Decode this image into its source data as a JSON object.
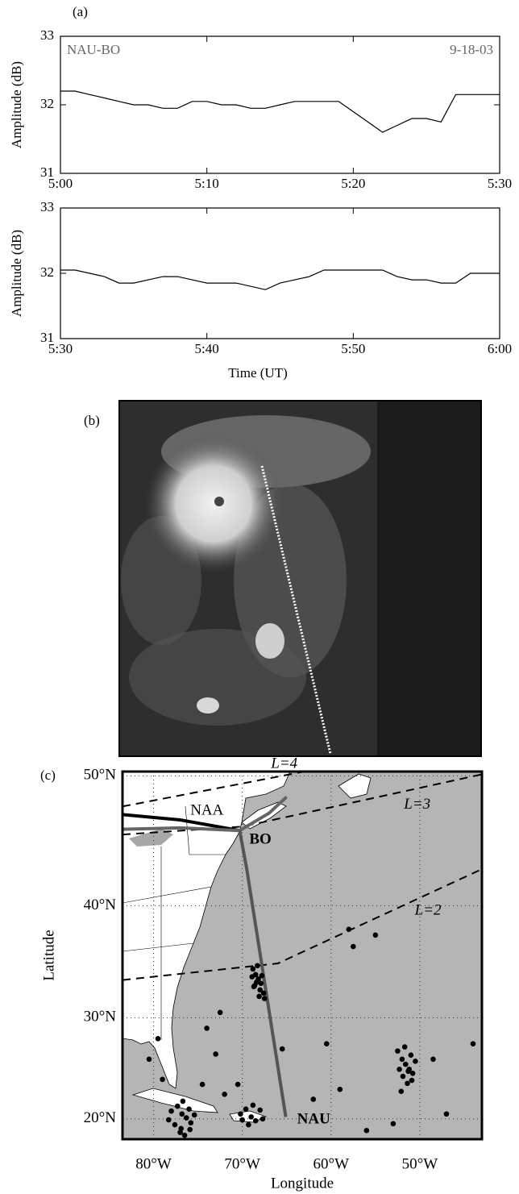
{
  "chart_data": [
    {
      "type": "line",
      "panel_label": "(a)",
      "ylabel": "Amplitude (dB)",
      "annotations": [
        "NAU-BO",
        "9-18-03"
      ],
      "color": "#000000",
      "x": [
        "5:00",
        "5:01",
        "5:02",
        "5:03",
        "5:04",
        "5:05",
        "5:06",
        "5:07",
        "5:08",
        "5:09",
        "5:10",
        "5:11",
        "5:12",
        "5:13",
        "5:14",
        "5:15",
        "5:16",
        "5:17",
        "5:18",
        "5:19",
        "5:20",
        "5:21",
        "5:22",
        "5:23",
        "5:24",
        "5:25",
        "5:26",
        "5:27",
        "5:28",
        "5:29",
        "5:30"
      ],
      "values": [
        32.2,
        32.2,
        32.15,
        32.1,
        32.05,
        32.0,
        32.0,
        31.95,
        31.95,
        32.05,
        32.05,
        32.0,
        32.0,
        31.95,
        31.95,
        32.0,
        32.05,
        32.05,
        32.05,
        32.05,
        31.9,
        31.75,
        31.6,
        31.7,
        31.8,
        31.8,
        31.75,
        32.15,
        32.15,
        32.15,
        32.15
      ],
      "xlim": [
        "5:00",
        "5:30"
      ],
      "xticks": [
        "5:00",
        "5:10",
        "5:20",
        "5:30"
      ],
      "ylim": [
        31,
        33
      ],
      "yticks": [
        31,
        32,
        33
      ]
    },
    {
      "type": "line",
      "ylabel": "Amplitude (dB)",
      "xlabel": "Time (UT)",
      "color": "#000000",
      "x": [
        "5:30",
        "5:31",
        "5:32",
        "5:33",
        "5:34",
        "5:35",
        "5:36",
        "5:37",
        "5:38",
        "5:39",
        "5:40",
        "5:41",
        "5:42",
        "5:43",
        "5:44",
        "5:45",
        "5:46",
        "5:47",
        "5:48",
        "5:49",
        "5:50",
        "5:51",
        "5:52",
        "5:53",
        "5:54",
        "5:55",
        "5:56",
        "5:57",
        "5:58",
        "5:59",
        "6:00"
      ],
      "values": [
        32.05,
        32.05,
        32.0,
        31.95,
        31.85,
        31.85,
        31.9,
        31.95,
        31.95,
        31.9,
        31.85,
        31.85,
        31.85,
        31.8,
        31.75,
        31.85,
        31.9,
        31.95,
        32.05,
        32.05,
        32.05,
        32.05,
        32.05,
        31.95,
        31.9,
        31.9,
        31.85,
        31.85,
        32.0,
        32.0,
        32.0
      ],
      "xlim": [
        "5:30",
        "6:00"
      ],
      "xticks": [
        "5:30",
        "5:40",
        "5:50",
        "6:00"
      ],
      "ylim": [
        31,
        33
      ],
      "yticks": [
        31,
        32,
        33
      ]
    },
    {
      "type": "map",
      "panel_label": "(c)",
      "xlabel": "Longitude",
      "ylabel": "Latitude",
      "projection": "mercator",
      "grid": true,
      "xlim": [
        -83.5,
        -43
      ],
      "ylim": [
        17.9,
        50.3
      ],
      "xticks": [
        {
          "value": -80,
          "label": "80°W"
        },
        {
          "value": -70,
          "label": "70°W"
        },
        {
          "value": -60,
          "label": "60°W"
        },
        {
          "value": -50,
          "label": "50°W"
        }
      ],
      "yticks": [
        {
          "value": 20,
          "label": "20°N"
        },
        {
          "value": 30,
          "label": "30°N"
        },
        {
          "value": 40,
          "label": "40°N"
        },
        {
          "value": 50,
          "label": "50°N"
        }
      ],
      "paths": [
        {
          "color": "#000000",
          "x": [
            -83.5,
            -77,
            -70.3
          ],
          "y": [
            47.2,
            46.8,
            46
          ]
        },
        {
          "color": "#666666",
          "x": [
            -83.5,
            -77,
            -70.3,
            -67,
            -65
          ],
          "y": [
            46.1,
            46.2,
            46,
            47.3,
            48.5
          ]
        },
        {
          "color": "#555555",
          "x": [
            -70.3,
            -69.5,
            -65.1
          ],
          "y": [
            46,
            43,
            20.2
          ]
        }
      ],
      "l_shells": [
        {
          "label": "L=4",
          "x": [
            -83.5,
            -63
          ],
          "y": [
            47.8,
            50.3
          ]
        },
        {
          "label": "L=3",
          "x": [
            -83.5,
            -70,
            -43
          ],
          "y": [
            45.7,
            46.3,
            50.1
          ]
        },
        {
          "label": "L=2",
          "x": [
            -83.5,
            -66,
            -43
          ],
          "y": [
            33.5,
            35,
            43
          ]
        }
      ],
      "stations": [
        {
          "label": "NAA",
          "x": -70.3,
          "y": 46
        },
        {
          "label": "BO",
          "x": -70.3,
          "y": 46
        },
        {
          "label": "NAU",
          "x": -65.1,
          "y": 20.2
        }
      ],
      "points": {
        "color": "#000000",
        "x": [
          -68.8,
          -68.5,
          -68.2,
          -67.9,
          -68.6,
          -68.0,
          -67.6,
          -68.9,
          -68.3,
          -67.8,
          -68.1,
          -68.7,
          -67.5,
          -68.4,
          -78.0,
          -77.3,
          -76.8,
          -76.3,
          -75.8,
          -77.6,
          -76.9,
          -76.0,
          -75.4,
          -77.0,
          -76.5,
          -78.3,
          -75.9,
          -76.7,
          -70.2,
          -69.6,
          -69.0,
          -68.5,
          -68.0,
          -69.3,
          -68.8,
          -67.7,
          -70.0,
          -52.5,
          -52.0,
          -51.6,
          -51.2,
          -50.8,
          -51.9,
          -51.4,
          -50.5,
          -52.3,
          -51.0,
          -51.7,
          -50.9,
          -52.1,
          -51.3,
          -80.5,
          -79.0,
          -74.5,
          -73.0,
          -72.0,
          -74.0,
          -60.5,
          -59.0,
          -57.5,
          -55.0,
          -48.5,
          -47.0,
          -62.0,
          -56.0,
          -53.0,
          -44.0,
          -58.0,
          -79.5,
          -72.5,
          -65.5,
          -70.5
        ],
        "y": [
          34.5,
          34.0,
          33.6,
          33.2,
          33.0,
          32.6,
          32.3,
          33.8,
          34.8,
          33.9,
          32.0,
          32.9,
          31.8,
          33.3,
          20.8,
          21.3,
          20.5,
          20.1,
          19.6,
          19.4,
          19.0,
          21.0,
          20.4,
          18.6,
          18.3,
          19.9,
          18.9,
          21.8,
          20.5,
          21.0,
          20.2,
          19.8,
          20.9,
          19.4,
          21.4,
          20.0,
          19.9,
          26.8,
          26.0,
          25.5,
          25.0,
          24.6,
          24.3,
          23.6,
          25.8,
          25.0,
          26.4,
          27.2,
          23.9,
          22.8,
          24.8,
          26.0,
          24.0,
          23.5,
          26.5,
          22.5,
          29.0,
          27.5,
          23.0,
          36.5,
          37.5,
          26.0,
          20.5,
          22.0,
          18.8,
          19.5,
          27.5,
          38.0,
          28.0,
          30.5,
          27.0,
          23.5
        ]
      }
    }
  ],
  "panel_b": {
    "label": "(b)"
  }
}
